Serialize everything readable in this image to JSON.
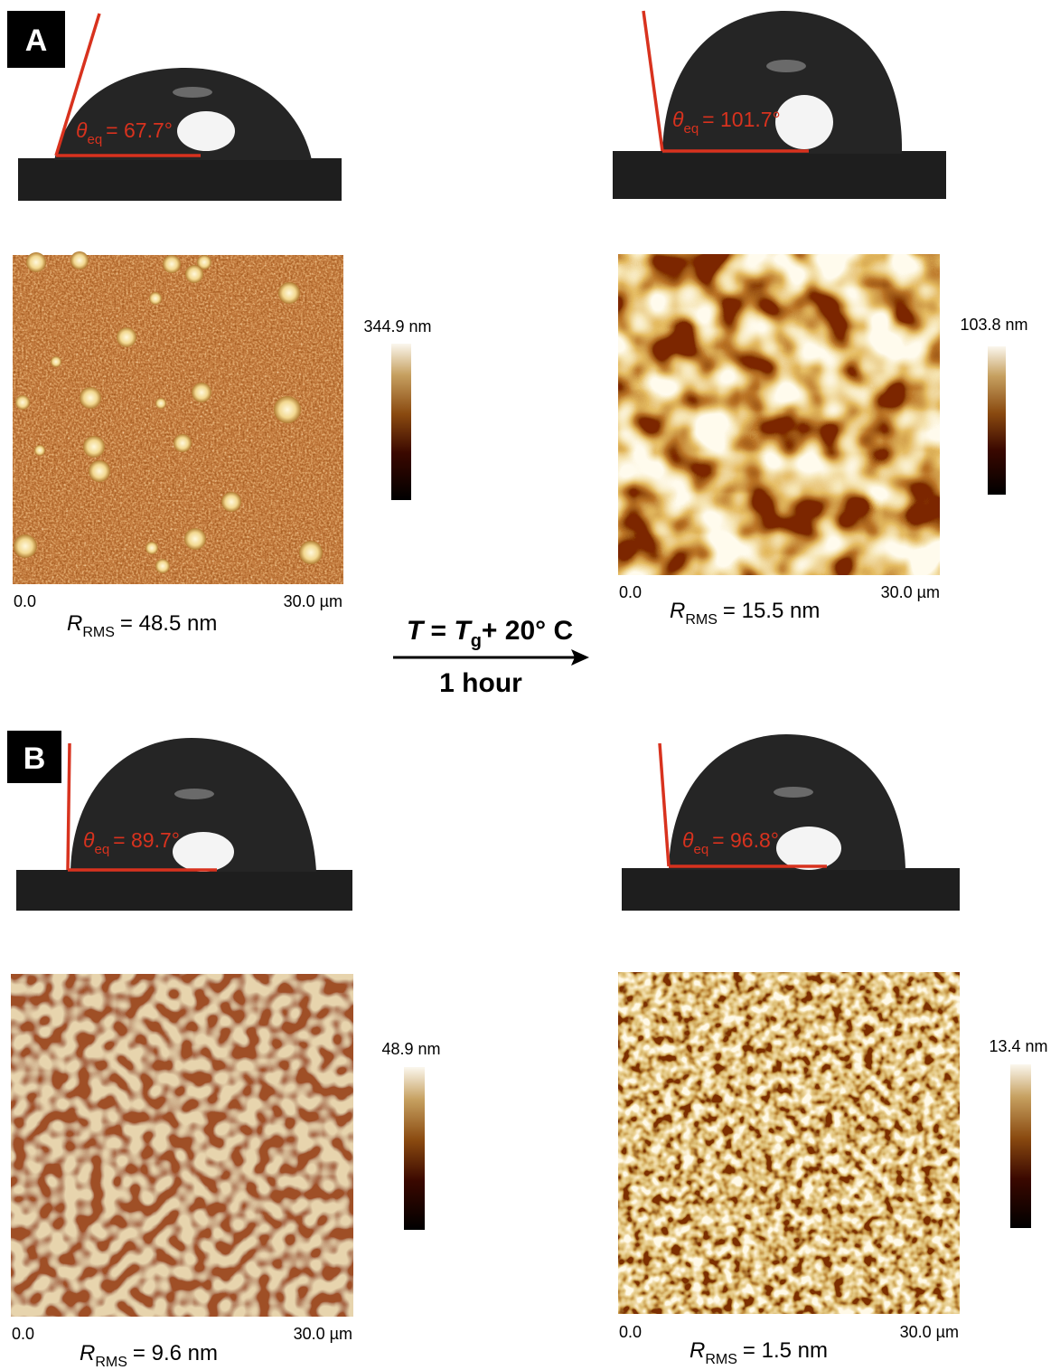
{
  "panels": [
    {
      "label": "A",
      "before": {
        "contact_angle": {
          "symbol": "θ",
          "subscript": "eq",
          "value": "= 67.7°"
        },
        "colorbar_max": "344.9 nm",
        "axis_start": "0.0",
        "axis_end": "30.0 µm",
        "roughness": {
          "symbol": "R",
          "subscript": "RMS",
          "value": "=  48.5 nm"
        }
      },
      "after": {
        "contact_angle": {
          "symbol": "θ",
          "subscript": "eq",
          "value": "= 101.7°"
        },
        "colorbar_max": "103.8 nm",
        "axis_start": "0.0",
        "axis_end": "30.0 µm",
        "roughness": {
          "symbol": "R",
          "subscript": "RMS",
          "value": "=  15.5 nm"
        }
      }
    },
    {
      "label": "B",
      "before": {
        "contact_angle": {
          "symbol": "θ",
          "subscript": "eq",
          "value": "= 89.7°"
        },
        "colorbar_max": "48.9 nm",
        "axis_start": "0.0",
        "axis_end": "30.0 µm",
        "roughness": {
          "symbol": "R",
          "subscript": "RMS",
          "value": "=  9.6 nm"
        }
      },
      "after": {
        "contact_angle": {
          "symbol": "θ",
          "subscript": "eq",
          "value": "= 96.8°"
        },
        "colorbar_max": "13.4 nm",
        "axis_start": "0.0",
        "axis_end": "30.0 µm",
        "roughness": {
          "symbol": "R",
          "subscript": "RMS",
          "value": "=  1.5 nm"
        }
      }
    }
  ],
  "treatment": {
    "temperature": {
      "symbol": "T",
      "equals": " = ",
      "glass_symbol": "T",
      "glass_subscript": "g",
      "offset": "+ 20° C"
    },
    "duration": "1 hour"
  }
}
